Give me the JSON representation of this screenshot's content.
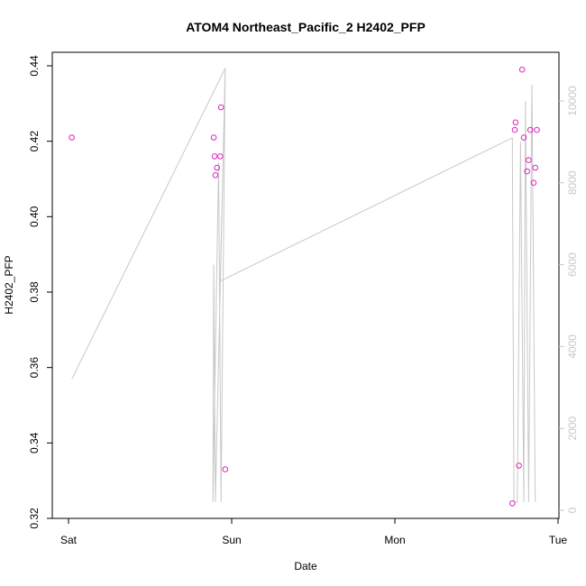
{
  "chart_data": {
    "type": "scatter",
    "title": "ATOM4 Northeast_Pacific_2 H2402_PFP",
    "xlabel": "Date",
    "ylabel": "H2402_PFP",
    "x_ticks": [
      "Sat",
      "Sun",
      "Mon",
      "Tue"
    ],
    "xlim_days": [
      0,
      3
    ],
    "ylim": [
      0.32,
      0.44
    ],
    "y_ticks": [
      0.32,
      0.34,
      0.36,
      0.38,
      0.4,
      0.42,
      0.44
    ],
    "y_right_ticks": [
      0,
      2000,
      4000,
      6000,
      8000,
      10000
    ],
    "y_right_lim": [
      0,
      10300
    ],
    "grid": false,
    "colors": {
      "points": "#e020c0",
      "line": "#c8c8c8",
      "axes": "#000000",
      "right_axis": "#c8c8c8"
    },
    "series": [
      {
        "kind": "points",
        "points": [
          {
            "x": 0.02,
            "y": 0.421
          },
          {
            "x": 0.89,
            "y": 0.421
          },
          {
            "x": 0.895,
            "y": 0.416
          },
          {
            "x": 0.9,
            "y": 0.411
          },
          {
            "x": 0.91,
            "y": 0.413
          },
          {
            "x": 0.93,
            "y": 0.416
          },
          {
            "x": 0.935,
            "y": 0.429
          },
          {
            "x": 0.96,
            "y": 0.333
          },
          {
            "x": 2.72,
            "y": 0.324
          },
          {
            "x": 2.735,
            "y": 0.423
          },
          {
            "x": 2.74,
            "y": 0.425
          },
          {
            "x": 2.76,
            "y": 0.334
          },
          {
            "x": 2.78,
            "y": 0.439
          },
          {
            "x": 2.79,
            "y": 0.421
          },
          {
            "x": 2.81,
            "y": 0.412
          },
          {
            "x": 2.82,
            "y": 0.415
          },
          {
            "x": 2.83,
            "y": 0.423
          },
          {
            "x": 2.85,
            "y": 0.409
          },
          {
            "x": 2.86,
            "y": 0.413
          },
          {
            "x": 2.87,
            "y": 0.423
          }
        ]
      },
      {
        "kind": "line",
        "axis": "right",
        "points": [
          {
            "x": 0.02,
            "y": 3200
          },
          {
            "x": 0.96,
            "y": 10800
          },
          {
            "x": 0.9,
            "y": 200
          },
          {
            "x": 0.89,
            "y": 6000
          },
          {
            "x": 0.885,
            "y": 200
          },
          {
            "x": 0.92,
            "y": 8500
          },
          {
            "x": 0.935,
            "y": 200
          },
          {
            "x": 0.96,
            "y": 10800
          },
          {
            "x": 0.93,
            "y": 5600
          },
          {
            "x": 2.72,
            "y": 9100
          },
          {
            "x": 2.73,
            "y": 200
          },
          {
            "x": 2.75,
            "y": 200
          },
          {
            "x": 2.77,
            "y": 9000
          },
          {
            "x": 2.79,
            "y": 200
          },
          {
            "x": 2.8,
            "y": 10000
          },
          {
            "x": 2.82,
            "y": 200
          },
          {
            "x": 2.84,
            "y": 10400
          },
          {
            "x": 2.86,
            "y": 200
          }
        ]
      }
    ]
  }
}
